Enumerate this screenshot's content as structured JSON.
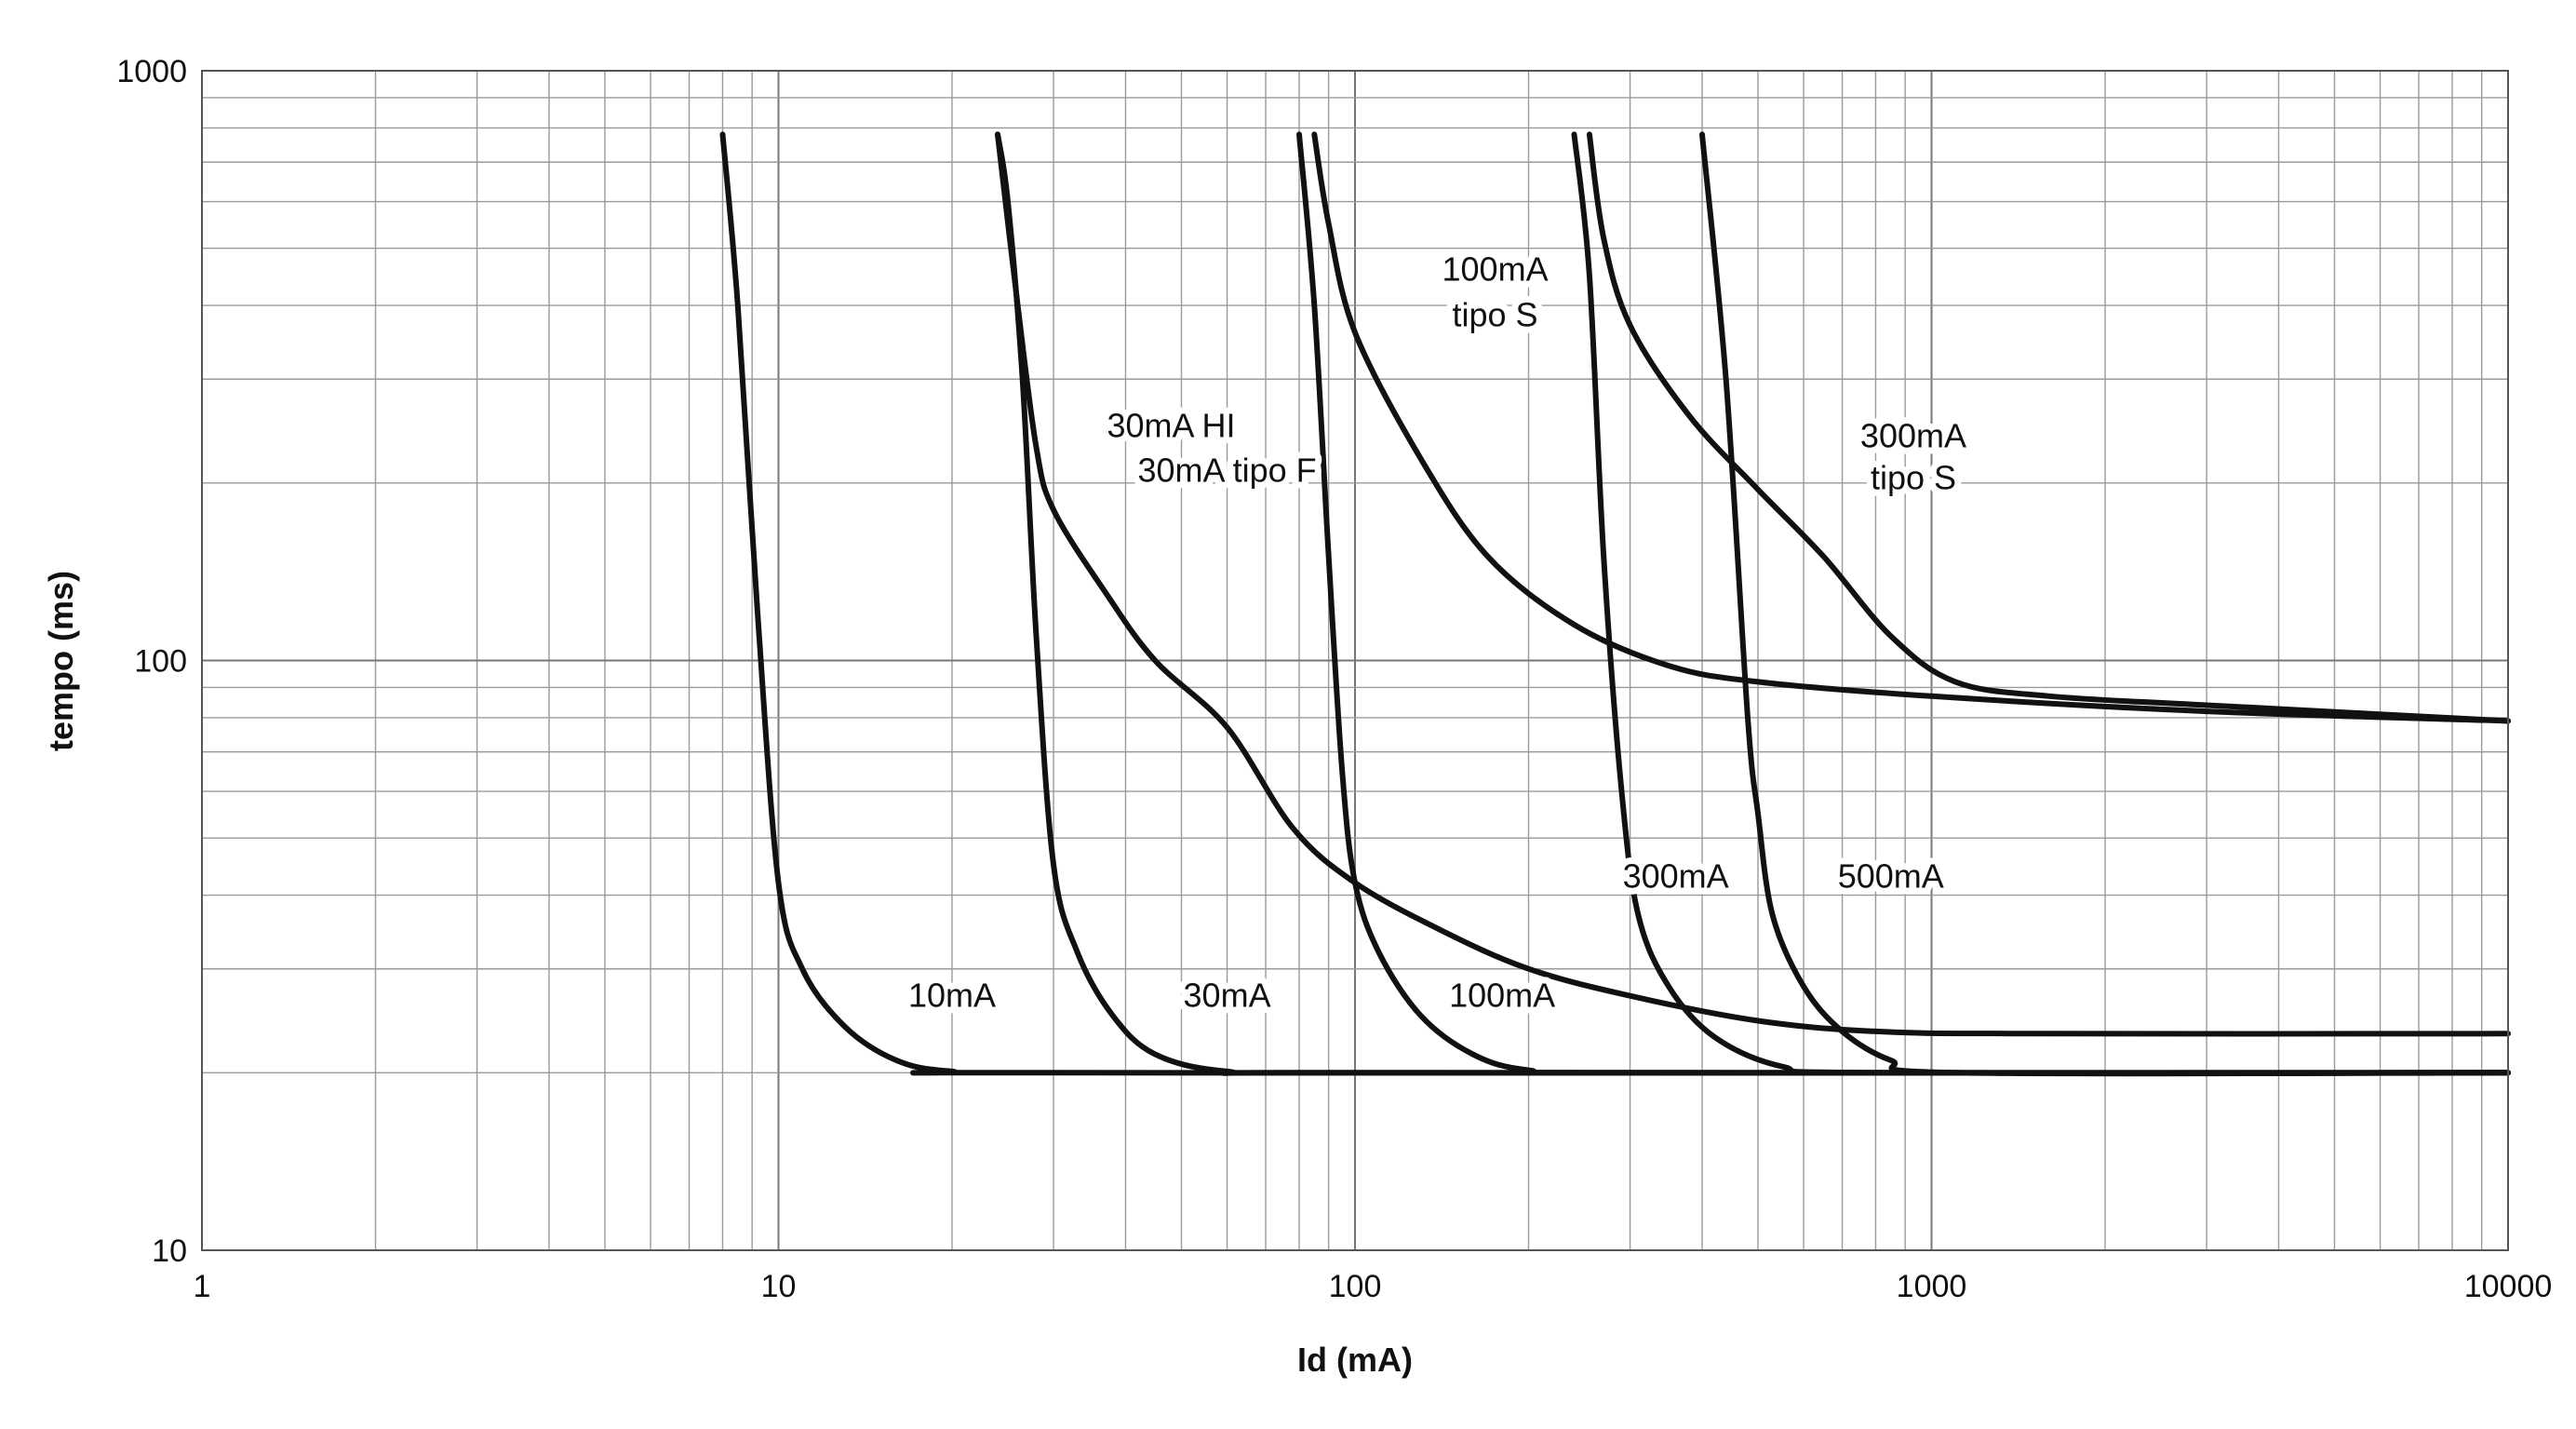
{
  "chart_data": {
    "type": "line",
    "xlabel": "Id (mA)",
    "ylabel": "tempo (ms)",
    "x_scale": "log",
    "y_scale": "log",
    "xlim": [
      1,
      10000
    ],
    "ylim": [
      10,
      1000
    ],
    "x_ticks": [
      1,
      10,
      100,
      1000,
      10000
    ],
    "y_ticks": [
      10,
      100,
      1000
    ],
    "x_tick_labels": [
      "1",
      "10",
      "100",
      "1000",
      "10000"
    ],
    "y_tick_labels": [
      "10",
      "100",
      "1000"
    ],
    "grid": true,
    "series": [
      {
        "values": [
          [
            8,
            780
          ],
          [
            8.5,
            400
          ],
          [
            9.2,
            120
          ],
          [
            10,
            42
          ],
          [
            11,
            30
          ],
          [
            13,
            24
          ],
          [
            16,
            21
          ],
          [
            20,
            20.1
          ],
          [
            30,
            20
          ],
          [
            10000,
            20
          ]
        ]
      },
      {
        "values": [
          [
            24,
            780
          ],
          [
            25,
            600
          ],
          [
            26.5,
            300
          ],
          [
            28,
            110
          ],
          [
            30,
            45
          ],
          [
            33,
            32
          ],
          [
            38,
            25
          ],
          [
            45,
            21.5
          ],
          [
            60,
            20.1
          ],
          [
            100,
            20
          ],
          [
            10000,
            20
          ]
        ]
      },
      {
        "values": [
          [
            24,
            780
          ],
          [
            26,
            400
          ],
          [
            28,
            230
          ],
          [
            30,
            180
          ],
          [
            37,
            130
          ],
          [
            45,
            100
          ],
          [
            60,
            77
          ],
          [
            78,
            52
          ],
          [
            100,
            42
          ],
          [
            140,
            35
          ],
          [
            200,
            30
          ],
          [
            300,
            27
          ],
          [
            500,
            24.5
          ],
          [
            800,
            23.5
          ],
          [
            1500,
            23.3
          ],
          [
            10000,
            23.3
          ]
        ]
      },
      {
        "values": [
          [
            80,
            780
          ],
          [
            85,
            400
          ],
          [
            90,
            150
          ],
          [
            95,
            65
          ],
          [
            100,
            42
          ],
          [
            110,
            32
          ],
          [
            130,
            25
          ],
          [
            160,
            21.5
          ],
          [
            200,
            20.2
          ],
          [
            300,
            20
          ],
          [
            10000,
            20
          ]
        ]
      },
      {
        "values": [
          [
            85,
            780
          ],
          [
            90,
            550
          ],
          [
            100,
            360
          ],
          [
            130,
            220
          ],
          [
            170,
            150
          ],
          [
            240,
            115
          ],
          [
            350,
            98
          ],
          [
            500,
            92
          ],
          [
            1000,
            87
          ],
          [
            3000,
            82
          ],
          [
            10000,
            79
          ]
        ]
      },
      {
        "values": [
          [
            240,
            780
          ],
          [
            255,
            450
          ],
          [
            270,
            150
          ],
          [
            290,
            60
          ],
          [
            310,
            37
          ],
          [
            350,
            28
          ],
          [
            420,
            23
          ],
          [
            550,
            20.5
          ],
          [
            800,
            20
          ],
          [
            10000,
            20
          ]
        ]
      },
      {
        "values": [
          [
            255,
            780
          ],
          [
            270,
            520
          ],
          [
            300,
            370
          ],
          [
            380,
            260
          ],
          [
            500,
            195
          ],
          [
            650,
            150
          ],
          [
            850,
            110
          ],
          [
            1100,
            92
          ],
          [
            1600,
            87
          ],
          [
            3000,
            84
          ],
          [
            10000,
            79
          ]
        ]
      },
      {
        "values": [
          [
            400,
            780
          ],
          [
            440,
            300
          ],
          [
            480,
            80
          ],
          [
            500,
            55
          ],
          [
            530,
            37
          ],
          [
            600,
            28
          ],
          [
            700,
            23.5
          ],
          [
            850,
            21
          ],
          [
            1100,
            20
          ],
          [
            10000,
            20
          ]
        ]
      }
    ],
    "annotations": [
      {
        "text": "10mA",
        "x": 20,
        "y": 27
      },
      {
        "text": "30mA",
        "x": 60,
        "y": 27
      },
      {
        "text": "100mA",
        "x": 180,
        "y": 27
      },
      {
        "text": "300mA",
        "x": 360,
        "y": 43
      },
      {
        "text": "500mA",
        "x": 850,
        "y": 43
      },
      {
        "text": "30mA HI",
        "x": 48,
        "y": 250,
        "weight": "normal"
      },
      {
        "text": "30mA tipo F",
        "x": 60,
        "y": 210
      },
      {
        "text": "100mA",
        "x": 175,
        "y": 460
      },
      {
        "text": "tipo S",
        "x": 175,
        "y": 385
      },
      {
        "text": "300mA",
        "x": 930,
        "y": 240
      },
      {
        "text": "tipo S",
        "x": 930,
        "y": 204
      }
    ]
  }
}
